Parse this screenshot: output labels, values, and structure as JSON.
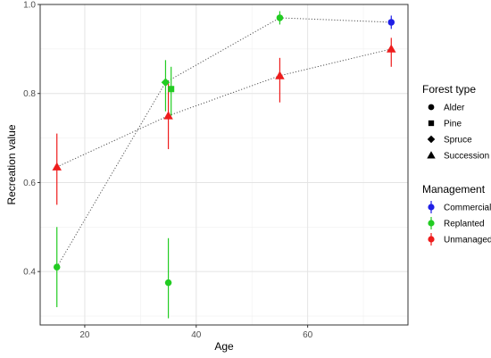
{
  "chart_data": {
    "type": "scatter",
    "xlabel": "Age",
    "ylabel": "Recreation value",
    "xlim": [
      12,
      78
    ],
    "ylim": [
      0.28,
      1.0
    ],
    "x_ticks": [
      20,
      40,
      60
    ],
    "y_ticks": [
      0.4,
      0.6,
      0.8,
      1.0
    ],
    "y_tick_labels": [
      "0.4",
      "0.6",
      "0.8",
      "1.0"
    ],
    "grid": true,
    "legend_placement": "right",
    "colors": {
      "Commercial": "#1f1fe6",
      "Replanted": "#22cc22",
      "Unmanaged": "#ee1c1c"
    },
    "legends": [
      {
        "title": "Forest type",
        "entries": [
          {
            "label": "Alder",
            "shape": "circle"
          },
          {
            "label": "Pine",
            "shape": "square"
          },
          {
            "label": "Spruce",
            "shape": "diamond"
          },
          {
            "label": "Succession",
            "shape": "triangle"
          }
        ]
      },
      {
        "title": "Management",
        "entries": [
          {
            "label": "Commercial",
            "color": "#1f1fe6"
          },
          {
            "label": "Replanted",
            "color": "#22cc22"
          },
          {
            "label": "Unmanaged",
            "color": "#ee1c1c"
          }
        ]
      }
    ],
    "points": [
      {
        "forest": "Alder",
        "management": "Replanted",
        "x": 15,
        "y": 0.41,
        "ymin": 0.32,
        "ymax": 0.5
      },
      {
        "forest": "Alder",
        "management": "Replanted",
        "x": 35,
        "y": 0.375,
        "ymin": 0.295,
        "ymax": 0.475
      },
      {
        "forest": "Alder",
        "management": "Replanted",
        "x": 55,
        "y": 0.97,
        "ymin": 0.955,
        "ymax": 0.985
      },
      {
        "forest": "Alder",
        "management": "Commercial",
        "x": 75,
        "y": 0.96,
        "ymin": 0.945,
        "ymax": 0.975
      },
      {
        "forest": "Pine",
        "management": "Replanted",
        "x": 35.5,
        "y": 0.81,
        "ymin": 0.75,
        "ymax": 0.86
      },
      {
        "forest": "Spruce",
        "management": "Replanted",
        "x": 34.5,
        "y": 0.825,
        "ymin": 0.76,
        "ymax": 0.875
      },
      {
        "forest": "Succession",
        "management": "Unmanaged",
        "x": 15,
        "y": 0.635,
        "ymin": 0.55,
        "ymax": 0.71
      },
      {
        "forest": "Succession",
        "management": "Unmanaged",
        "x": 35,
        "y": 0.75,
        "ymin": 0.675,
        "ymax": 0.825
      },
      {
        "forest": "Succession",
        "management": "Unmanaged",
        "x": 55,
        "y": 0.84,
        "ymin": 0.78,
        "ymax": 0.88
      },
      {
        "forest": "Succession",
        "management": "Unmanaged",
        "x": 75,
        "y": 0.9,
        "ymin": 0.86,
        "ymax": 0.925
      }
    ],
    "lines": [
      {
        "style": "dotted",
        "points": [
          [
            15,
            0.41
          ],
          [
            34.5,
            0.825
          ],
          [
            55,
            0.97
          ],
          [
            75,
            0.96
          ]
        ]
      },
      {
        "style": "dotted",
        "points": [
          [
            15,
            0.635
          ],
          [
            35,
            0.75
          ],
          [
            55,
            0.84
          ],
          [
            75,
            0.9
          ]
        ]
      }
    ]
  }
}
